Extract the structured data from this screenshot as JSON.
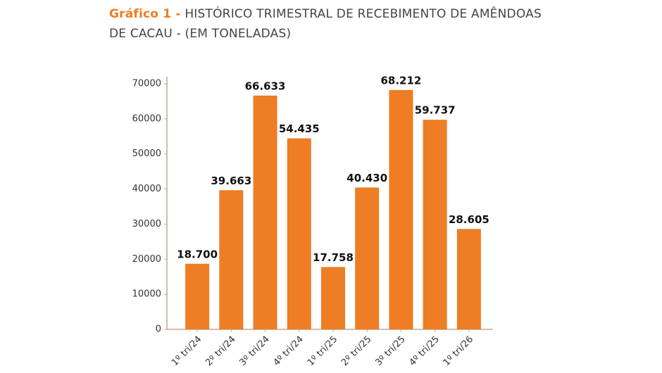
{
  "chart_data": {
    "type": "bar",
    "title_prefix": "Gráfico 1 -",
    "title": "HISTÓRICO TRIMESTRAL DE RECEBIMENTO DE AMÊNDOAS DE CACAU - (EM TONELADAS)",
    "categories": [
      "1º tri/24",
      "2º tri/24",
      "3º tri/24",
      "4º tri/24",
      "1º tri/25",
      "2º tri/25",
      "3º tri/25",
      "4º tri/25",
      "1º tri/26"
    ],
    "values": [
      18700,
      39663,
      66633,
      54435,
      17758,
      40430,
      68212,
      59737,
      28605
    ],
    "value_labels": [
      "18.700",
      "39.663",
      "66.633",
      "54.435",
      "17.758",
      "40.430",
      "68.212",
      "59.737",
      "28.605"
    ],
    "color": "#ee7d24",
    "ylim": [
      0,
      70000
    ],
    "yticks": [
      0,
      10000,
      20000,
      30000,
      40000,
      50000,
      60000,
      70000
    ]
  }
}
